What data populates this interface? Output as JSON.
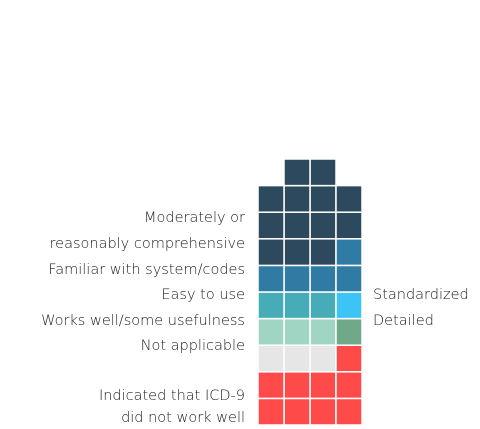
{
  "chart_data": {
    "type": "waffle",
    "series": [
      {
        "name": [
          "Indicated that ICD-9",
          "did not work well"
        ],
        "color": "#ff4a4a",
        "values": [
          6,
          3
        ]
      },
      {
        "name": [
          "Not applicable"
        ],
        "color": "#e6e6e6",
        "values": [
          3,
          0
        ]
      },
      {
        "name": [
          "Works well/some usefulness"
        ],
        "color": "#9fd5c2",
        "values": [
          3,
          0
        ]
      },
      {
        "name": [
          "Detailed"
        ],
        "color": "#6fa98a",
        "values": [
          0,
          1
        ]
      },
      {
        "name": [
          "Easy to use"
        ],
        "color": "#46adb8",
        "values": [
          3,
          0
        ]
      },
      {
        "name": [
          "Standardized"
        ],
        "color": "#3dc4f6",
        "values": [
          0,
          1
        ]
      },
      {
        "name": [
          "Familiar with system/codes"
        ],
        "color": "#2f7ba4",
        "values": [
          3,
          2
        ]
      },
      {
        "name": [
          "Moderately or",
          "reasonably comprehensive"
        ],
        "color": "#2c495d",
        "values": [
          11,
          2
        ]
      }
    ]
  }
}
